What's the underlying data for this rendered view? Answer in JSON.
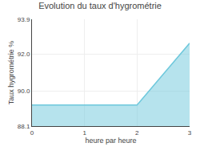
{
  "chart_data": {
    "type": "area",
    "title": "Evolution du taux d'hygrométrie",
    "xlabel": "heure par heure",
    "ylabel": "Taux hygrométrie %",
    "x": [
      0,
      2,
      3
    ],
    "values": [
      89.25,
      89.25,
      92.6
    ],
    "color": "#6ec8dc",
    "xlim": [
      0,
      3
    ],
    "xticks": [
      0,
      1,
      2,
      3
    ],
    "ylim": [
      88.1,
      93.9
    ],
    "yticks": [
      88.1,
      {
        "value": 90.0,
        "label": "90.0"
      },
      {
        "value": 92.0,
        "label": "92.0"
      },
      93.9
    ],
    "grid": true
  }
}
